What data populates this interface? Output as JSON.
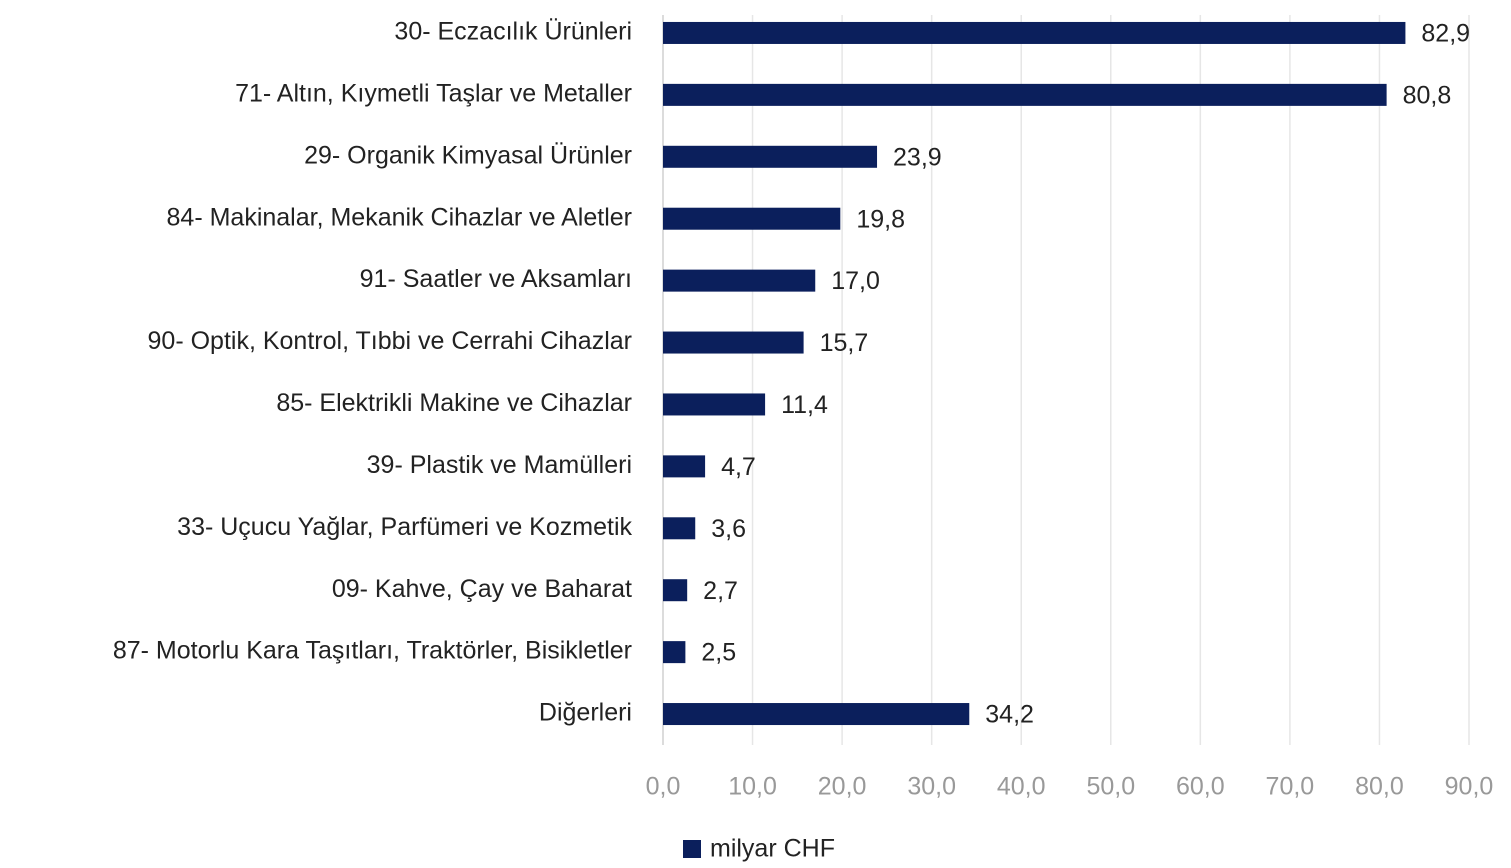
{
  "chart_data": {
    "type": "barh",
    "categories": [
      "30- Eczacılık Ürünleri",
      "71- Altın, Kıymetli Taşlar ve Metaller",
      "29- Organik Kimyasal Ürünler",
      "84- Makinalar, Mekanik Cihazlar ve Aletler",
      "91- Saatler ve Aksamları",
      "90- Optik, Kontrol, Tıbbi ve Cerrahi Cihazlar",
      "85- Elektrikli Makine ve Cihazlar",
      "39- Plastik ve Mamülleri",
      "33- Uçucu Yağlar, Parfümeri ve Kozmetik",
      "09- Kahve, Çay ve Baharat",
      "87- Motorlu Kara Taşıtları, Traktörler, Bisikletler",
      "Diğerleri"
    ],
    "series": [
      {
        "name": "milyar CHF",
        "color": "#0b1f5c",
        "values": [
          82.9,
          80.8,
          23.9,
          19.8,
          17.0,
          15.7,
          11.4,
          4.7,
          3.6,
          2.7,
          2.5,
          34.2
        ],
        "value_labels": [
          "82,9",
          "80,8",
          "23,9",
          "19,8",
          "17,0",
          "15,7",
          "11,4",
          "4,7",
          "3,6",
          "2,7",
          "2,5",
          "34,2"
        ]
      }
    ],
    "xlim": [
      0,
      90
    ],
    "xticks": [
      {
        "value": 0,
        "label": "0,0"
      },
      {
        "value": 10,
        "label": "10,0"
      },
      {
        "value": 20,
        "label": "20,0"
      },
      {
        "value": 30,
        "label": "30,0"
      },
      {
        "value": 40,
        "label": "40,0"
      },
      {
        "value": 50,
        "label": "50,0"
      },
      {
        "value": 60,
        "label": "60,0"
      },
      {
        "value": 70,
        "label": "70,0"
      },
      {
        "value": 80,
        "label": "80,0"
      },
      {
        "value": 90,
        "label": "90,0"
      }
    ],
    "grid": true,
    "legend": "bottom"
  }
}
